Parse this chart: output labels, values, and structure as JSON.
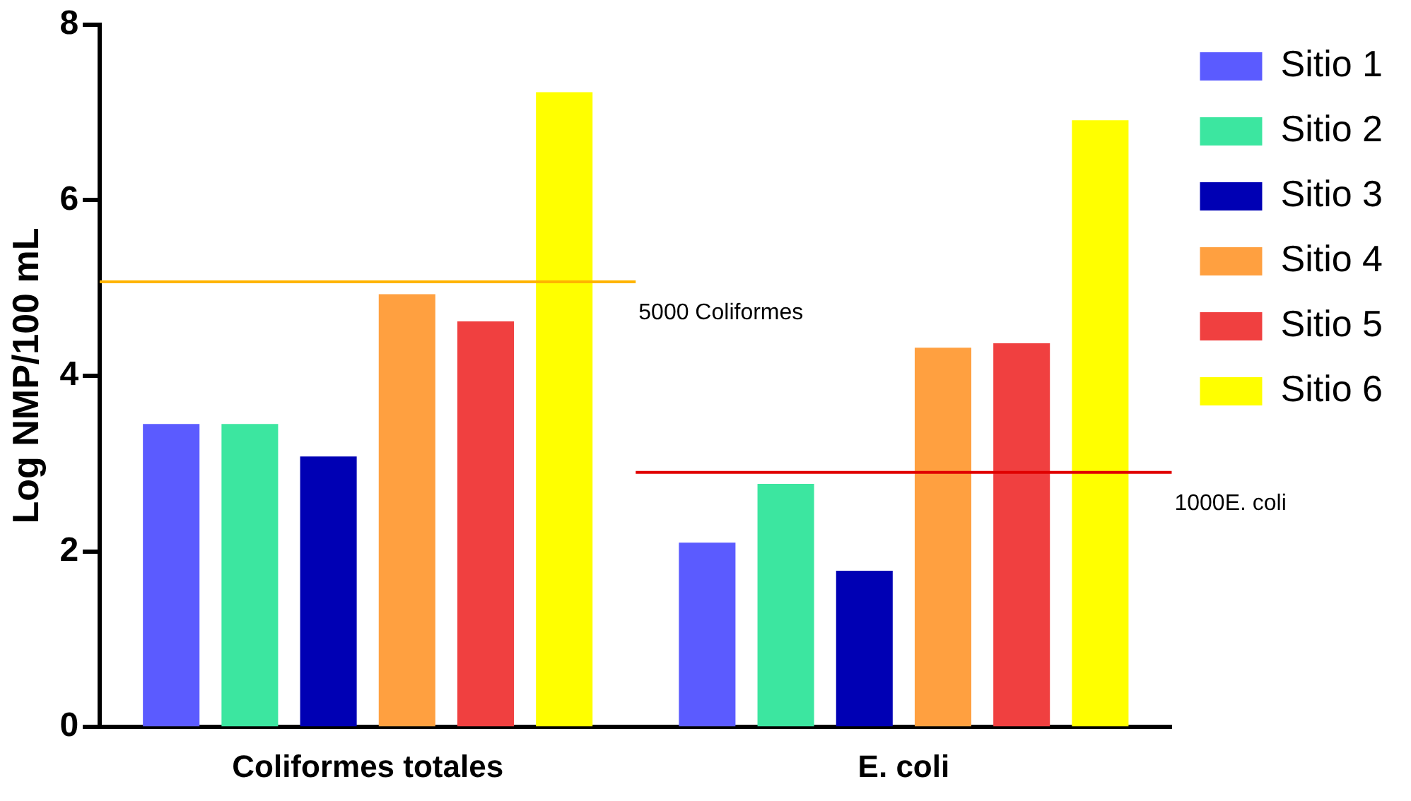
{
  "chart_data": {
    "type": "bar",
    "ylabel": "Log NMP/100 mL",
    "categories": [
      "Coliformes totales",
      "E. coli"
    ],
    "series": [
      {
        "name": "Sitio 1",
        "color": "#5b5bff",
        "values": [
          3.45,
          2.1
        ]
      },
      {
        "name": "Sitio 2",
        "color": "#3ce6a0",
        "values": [
          3.45,
          2.77
        ]
      },
      {
        "name": "Sitio 3",
        "color": "#0000b4",
        "values": [
          3.08,
          1.78
        ]
      },
      {
        "name": "Sitio 4",
        "color": "#ffa040",
        "values": [
          4.93,
          4.32
        ]
      },
      {
        "name": "Sitio 5",
        "color": "#f04040",
        "values": [
          4.62,
          4.37
        ]
      },
      {
        "name": "Sitio 6",
        "color": "#ffff00",
        "values": [
          7.23,
          6.91
        ]
      }
    ],
    "ylim": [
      0,
      8
    ],
    "yticks": [
      0,
      2,
      4,
      6,
      8
    ],
    "grid": false,
    "legend": "right",
    "ref_lines": [
      {
        "axis": "y",
        "value": 5.07,
        "label": "5000 Coliformes",
        "color": "#ffb400"
      },
      {
        "axis": "y",
        "value": 2.9,
        "label": "1000E. coli",
        "color": "#e00000"
      }
    ]
  }
}
